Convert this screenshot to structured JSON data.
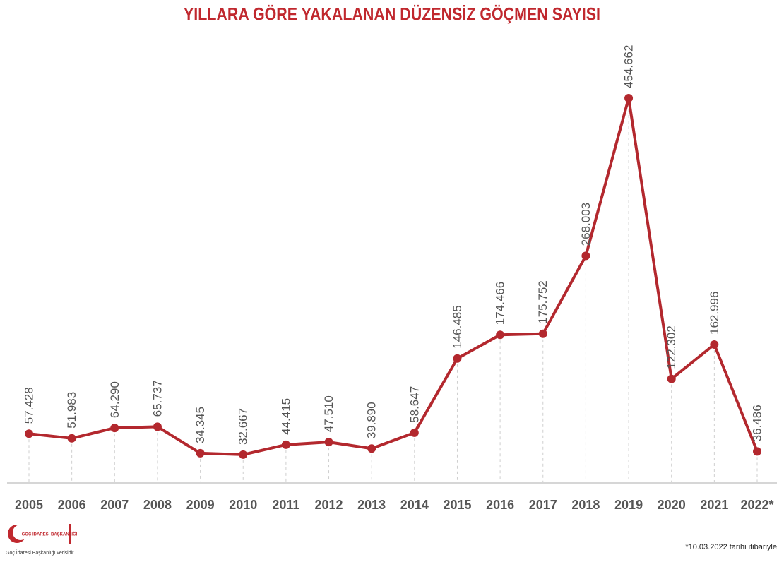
{
  "chart_data": {
    "type": "line",
    "title": "YILLARA GÖRE YAKALANAN DÜZENSİZ GÖÇMEN SAYISI",
    "categories": [
      "2005",
      "2006",
      "2007",
      "2008",
      "2009",
      "2010",
      "2011",
      "2012",
      "2013",
      "2014",
      "2015",
      "2016",
      "2017",
      "2018",
      "2019",
      "2020",
      "2021",
      "2022*"
    ],
    "series": [
      {
        "color": "#b3282e",
        "values": [
          57428,
          51983,
          64290,
          65737,
          34345,
          32667,
          44415,
          47510,
          39890,
          58647,
          146485,
          174466,
          175752,
          268003,
          454662,
          122302,
          162996,
          36486
        ],
        "value_labels": [
          "57.428",
          "51.983",
          "64.290",
          "65.737",
          "34.345",
          "32.667",
          "44.415",
          "47.510",
          "39.890",
          "58.647",
          "146.485",
          "174.466",
          "175.752",
          "268.003",
          "454.662",
          "122.302",
          "162.996",
          "36.486"
        ]
      }
    ],
    "source_org": "GÖÇ İDARESİ BAŞKANLIĞI",
    "source": "Göç İdaresi Başkanlığı verisidir",
    "footnote": "*10.03.2022 tarihi itibariyle"
  }
}
